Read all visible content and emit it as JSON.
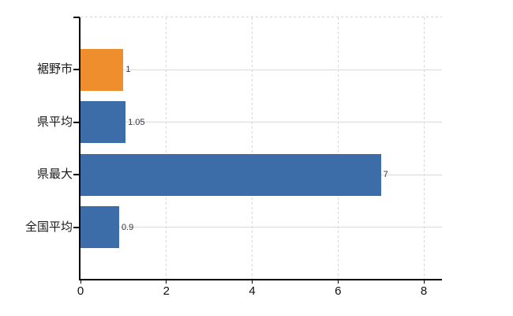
{
  "chart_data": {
    "type": "bar",
    "orientation": "horizontal",
    "title": "",
    "categories": [
      "裾野市",
      "県平均",
      "県最大",
      "全国平均"
    ],
    "values": [
      1,
      1.05,
      7,
      0.9
    ],
    "value_labels": [
      "1",
      "1.05",
      "7",
      "0.9"
    ],
    "bar_colors": [
      "#ef8e2d",
      "#3d6da8",
      "#3d6da8",
      "#3d6da8"
    ],
    "xlim": [
      0,
      8
    ],
    "x_tick_values": [
      0,
      2,
      4,
      6,
      8
    ],
    "x_tick_labels": [
      "0",
      "2",
      "4",
      "6",
      "8"
    ],
    "grid": "on",
    "legend": "none"
  },
  "colors": {
    "accent_orange": "#ef8e2d",
    "accent_blue": "#3d6da8",
    "axis": "#000000",
    "gridline": "#d6d6d6",
    "row_gridline": "#d8dcd6",
    "category_text": "#1a1a1a",
    "tick_text": "#111111",
    "value_text": "#333344",
    "background": "#ffffff"
  }
}
